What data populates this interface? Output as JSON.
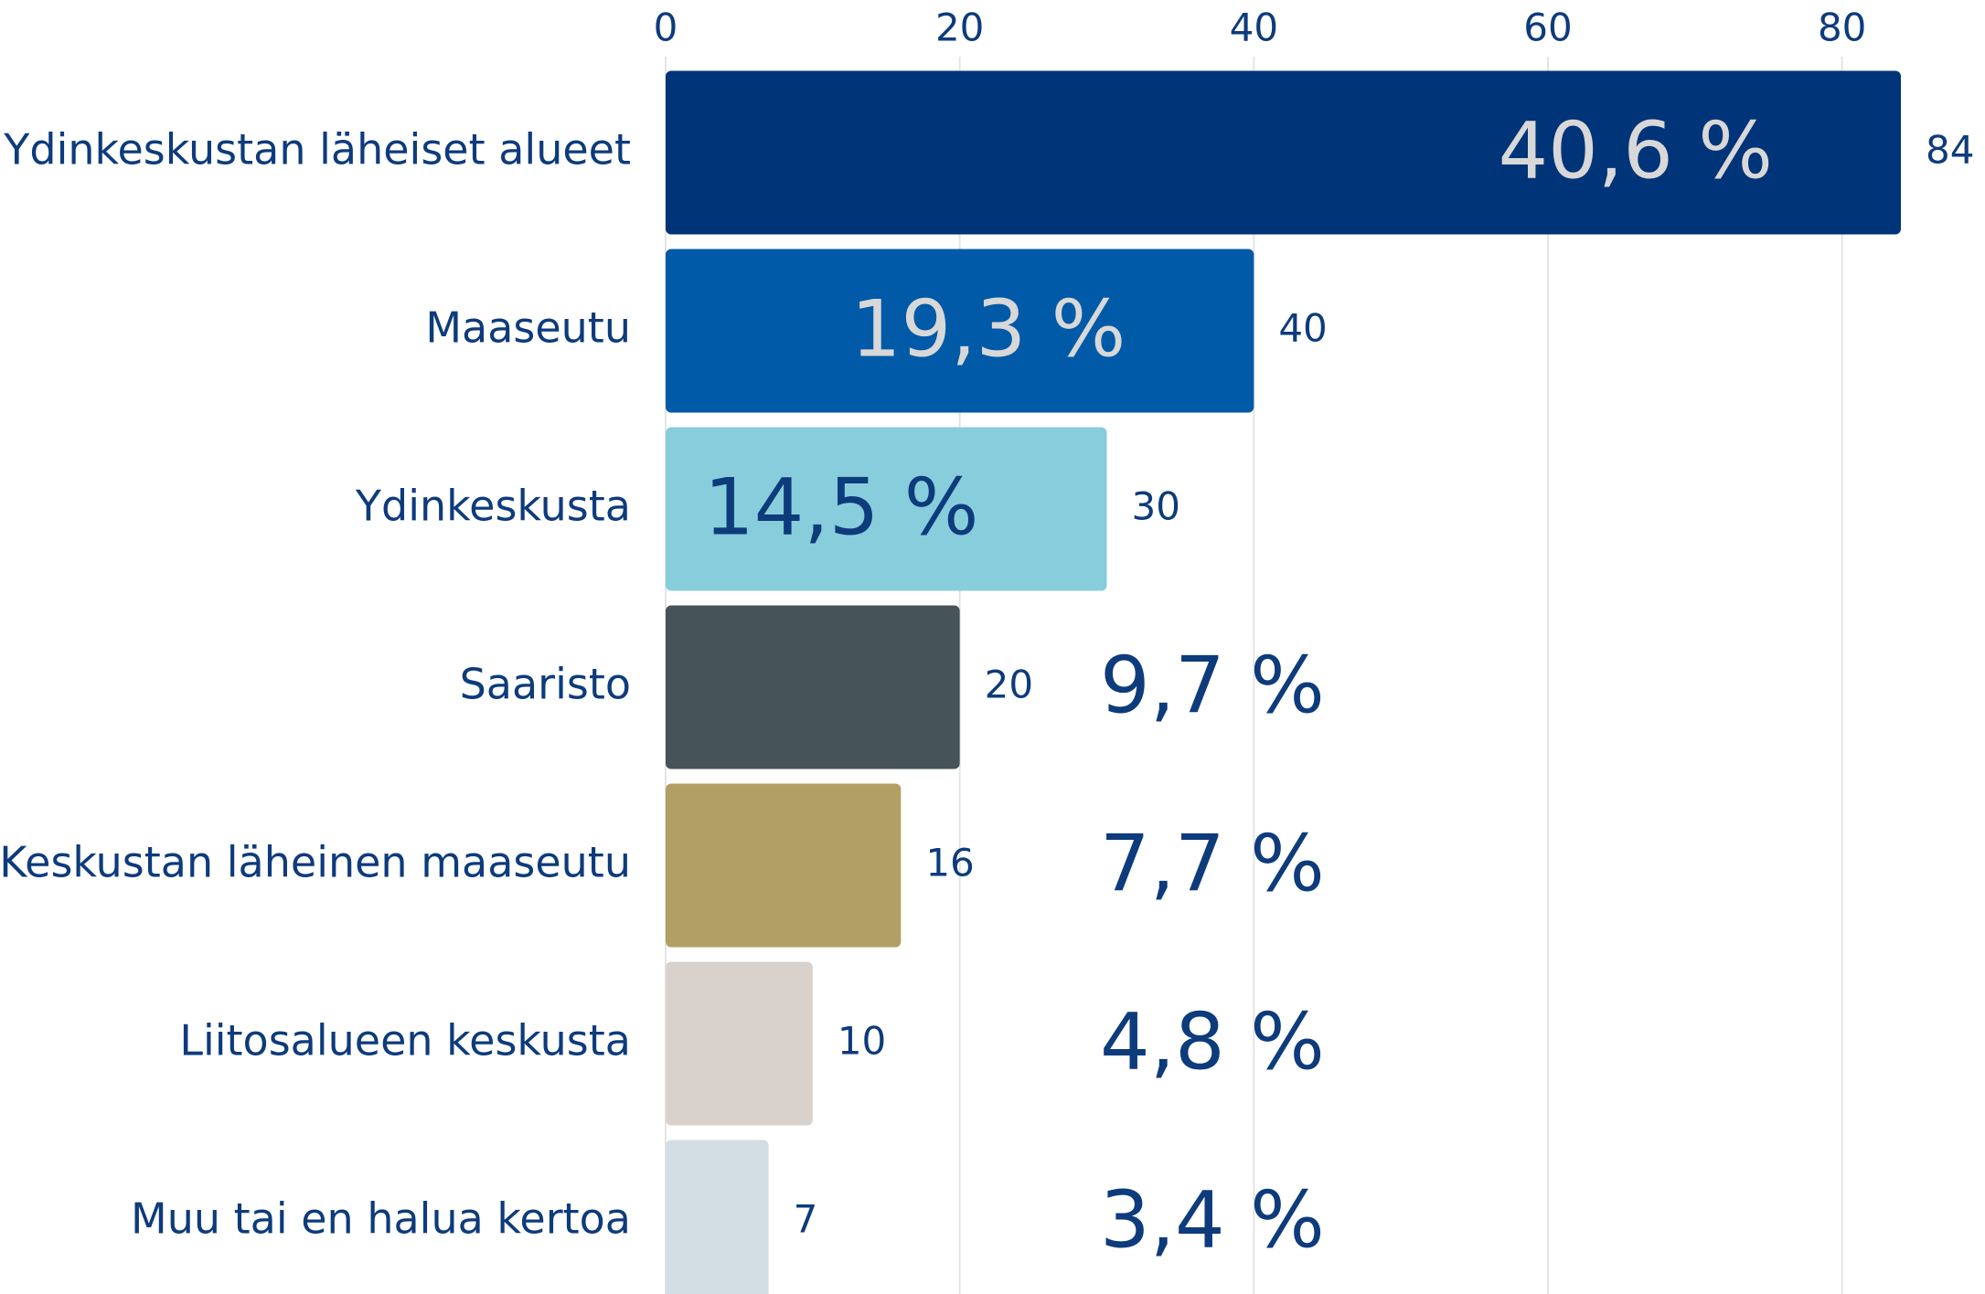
{
  "chart_data": {
    "type": "hbar",
    "categories": [
      "Ydinkeskustan läheiset alueet",
      "Maaseutu",
      "Ydinkeskusta",
      "Saaristo",
      "Keskustan läheinen maaseutu",
      "Liitosalueen keskusta",
      "Muu tai en halua kertoa"
    ],
    "values": [
      84,
      40,
      30,
      20,
      16,
      10,
      7
    ],
    "colors": [
      "#003478",
      "#005aa7",
      "#87cddb",
      "#465358",
      "#b29f63",
      "#d9d1cb",
      "#d3dde4"
    ],
    "annotations": [
      "40,6 %",
      "19,3 %",
      "14,5 %",
      "9,7 %",
      "7,7 %",
      "4,8 %",
      "3,4 %"
    ],
    "xlim": [
      0,
      84
    ],
    "xticks": [
      0,
      20,
      40,
      60,
      80
    ],
    "grid": true
  }
}
